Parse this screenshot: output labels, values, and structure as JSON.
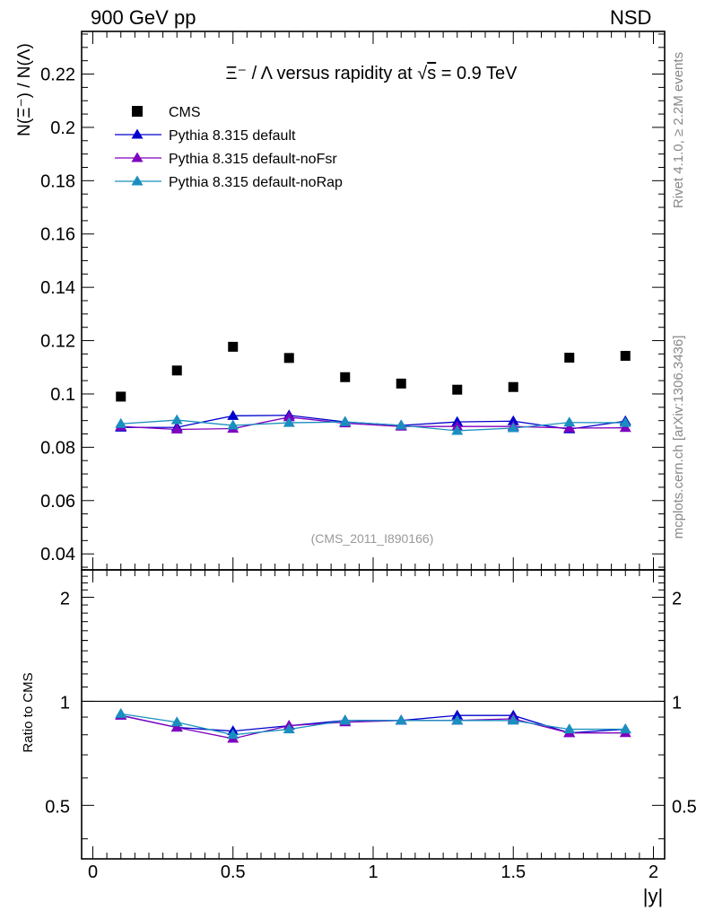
{
  "header": {
    "left": "900 GeV pp",
    "right": "NSD"
  },
  "side": {
    "rivet": "Rivet 4.1.0, ≥ 2.2M events",
    "mcplots": "mcplots.cern.ch [arXiv:1306.3436]"
  },
  "chart_data": {
    "type": "scatter",
    "title_prefix": "Ξ⁻ / Λ versus rapidity at ",
    "title_sqrt": "√",
    "title_s": "s",
    "title_suffix": " = 0.9 TeV",
    "analysis_id": "(CMS_2011_I890166)",
    "ylabel_main": "N(Ξ⁻)  / N(Λ)",
    "ylabel_ratio": "Ratio to CMS",
    "xlabel": "|y|",
    "xlim": [
      -0.04,
      2.04
    ],
    "main_ylim": [
      0.034,
      0.236
    ],
    "ratio_ylim": [
      0.35,
      2.4
    ],
    "x": [
      0.1,
      0.3,
      0.5,
      0.7,
      0.9,
      1.1,
      1.3,
      1.5,
      1.7,
      1.9
    ],
    "x_ticks": [
      {
        "v": 0,
        "label": "0"
      },
      {
        "v": 0.5,
        "label": "0.5"
      },
      {
        "v": 1,
        "label": "1"
      },
      {
        "v": 1.5,
        "label": "1.5"
      },
      {
        "v": 2,
        "label": "2"
      }
    ],
    "main_y_ticks": [
      {
        "v": 0.04,
        "label": "0.04"
      },
      {
        "v": 0.06,
        "label": "0.06"
      },
      {
        "v": 0.08,
        "label": "0.08"
      },
      {
        "v": 0.1,
        "label": "0.1"
      },
      {
        "v": 0.12,
        "label": "0.12"
      },
      {
        "v": 0.14,
        "label": "0.14"
      },
      {
        "v": 0.16,
        "label": "0.16"
      },
      {
        "v": 0.18,
        "label": "0.18"
      },
      {
        "v": 0.2,
        "label": "0.2"
      },
      {
        "v": 0.22,
        "label": "0.22"
      }
    ],
    "ratio_y_ticks": [
      {
        "v": 0.5,
        "label": "0.5"
      },
      {
        "v": 1,
        "label": "1"
      },
      {
        "v": 2,
        "label": "2"
      }
    ],
    "data": {
      "name": "CMS",
      "color": "#000000",
      "values": [
        0.099,
        0.1088,
        0.1177,
        0.1135,
        0.1063,
        0.1039,
        0.1016,
        0.1026,
        0.1136,
        0.1143
      ]
    },
    "series": [
      {
        "name": "Pythia 8.315 default",
        "color": "#0000cc",
        "values": [
          0.0874,
          0.0875,
          0.0918,
          0.092,
          0.0895,
          0.0882,
          0.0895,
          0.0898,
          0.0868,
          0.0898
        ],
        "ratio": [
          0.91,
          0.84,
          0.82,
          0.85,
          0.88,
          0.88,
          0.91,
          0.91,
          0.81,
          0.83
        ]
      },
      {
        "name": "Pythia 8.315 default-noFsr",
        "color": "#7f00bf",
        "values": [
          0.0878,
          0.0867,
          0.087,
          0.0913,
          0.089,
          0.0878,
          0.0878,
          0.0878,
          0.0872,
          0.0873
        ],
        "ratio": [
          0.91,
          0.84,
          0.78,
          0.85,
          0.87,
          0.88,
          0.88,
          0.89,
          0.81,
          0.81
        ]
      },
      {
        "name": "Pythia 8.315 default-noRap",
        "color": "#1a8fbf",
        "values": [
          0.0888,
          0.0902,
          0.0882,
          0.0892,
          0.0895,
          0.0882,
          0.0862,
          0.0872,
          0.0893,
          0.0892
        ],
        "ratio": [
          0.92,
          0.87,
          0.8,
          0.83,
          0.88,
          0.88,
          0.88,
          0.88,
          0.83,
          0.83
        ]
      }
    ]
  }
}
